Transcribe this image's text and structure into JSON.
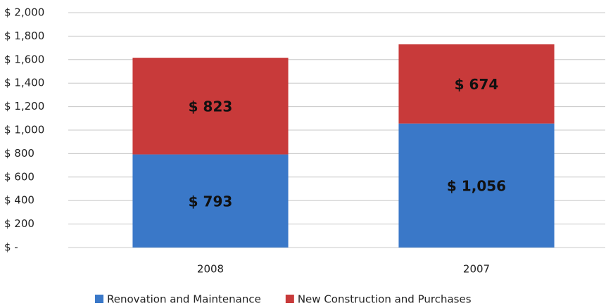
{
  "chart_data": {
    "type": "stacked_bar",
    "categories": [
      "2008",
      "2007"
    ],
    "series": [
      {
        "name": "Renovation and Maintenance",
        "color": "#3a78c8",
        "values": [
          793,
          1056
        ],
        "value_labels": [
          "$ 793",
          "$ 1,056"
        ]
      },
      {
        "name": "New Construction and Purchases",
        "color": "#c83a3a",
        "values": [
          823,
          674
        ],
        "value_labels": [
          "$ 823",
          "$ 674"
        ]
      }
    ],
    "ylim": [
      0,
      2000
    ],
    "yticks": [
      {
        "value": 0,
        "label": "$ -"
      },
      {
        "value": 200,
        "label": "$ 200"
      },
      {
        "value": 400,
        "label": "$ 400"
      },
      {
        "value": 600,
        "label": "$ 600"
      },
      {
        "value": 800,
        "label": "$ 800"
      },
      {
        "value": 1000,
        "label": "$ 1,000"
      },
      {
        "value": 1200,
        "label": "$ 1,200"
      },
      {
        "value": 1400,
        "label": "$ 1,400"
      },
      {
        "value": 1600,
        "label": "$ 1,600"
      },
      {
        "value": 1800,
        "label": "$ 1,800"
      },
      {
        "value": 2000,
        "label": "$ 2,000"
      }
    ],
    "grid": true,
    "legend": "bottom"
  }
}
